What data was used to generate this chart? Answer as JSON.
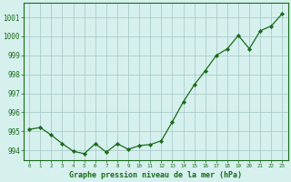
{
  "x": [
    0,
    1,
    2,
    3,
    4,
    5,
    6,
    7,
    8,
    9,
    10,
    11,
    12,
    13,
    14,
    15,
    16,
    17,
    18,
    19,
    20,
    21,
    22,
    23
  ],
  "y": [
    995.1,
    995.2,
    994.8,
    994.35,
    993.95,
    993.82,
    994.35,
    993.9,
    994.35,
    994.05,
    994.25,
    994.3,
    994.5,
    995.5,
    996.55,
    997.45,
    998.2,
    999.0,
    999.35,
    1000.05,
    999.35,
    1000.3,
    1000.55,
    1001.2
  ],
  "line_color": "#1a6b1a",
  "marker_color": "#1a6b1a",
  "bg_color": "#d6f0ee",
  "grid_color": "#aacccc",
  "title": "Graphe pression niveau de la mer (hPa)",
  "title_color": "#1a6b1a",
  "ylabel_values": [
    994,
    995,
    996,
    997,
    998,
    999,
    1000,
    1001
  ],
  "ylim": [
    993.5,
    1001.75
  ],
  "xlim": [
    -0.5,
    23.5
  ]
}
